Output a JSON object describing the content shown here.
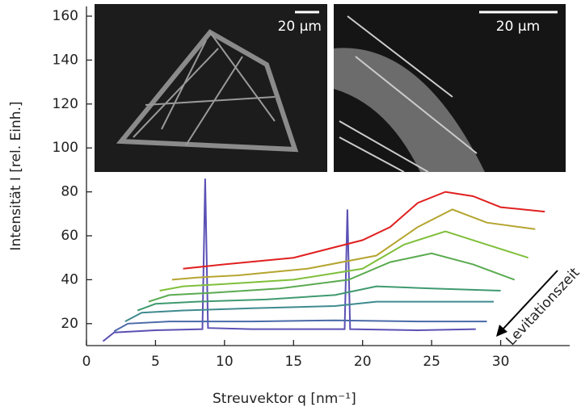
{
  "chart_data": {
    "type": "line",
    "x_label": "Streuvektor q [nm⁻¹]",
    "y_label": "Intensität I [rel. Einh.]",
    "annotation": "Levitationszeit",
    "inset_labels": [
      "20 µm",
      "20 µm"
    ],
    "xlim": [
      0,
      35
    ],
    "xticks": [
      0,
      5,
      10,
      15,
      20,
      25,
      30
    ],
    "ylim": [
      10,
      160
    ],
    "yticks": [
      20,
      40,
      60,
      80,
      100,
      120,
      140,
      160
    ],
    "series": [
      {
        "color": "#5a50b4",
        "x": [
          1.2,
          2,
          5,
          8.4,
          8.6,
          8.8,
          12,
          18.7,
          18.9,
          19.1,
          24,
          28.2
        ],
        "values": [
          12,
          16,
          17,
          17.5,
          86,
          18,
          17.5,
          17.5,
          72,
          17.5,
          17,
          17.5
        ]
      },
      {
        "color": "#4a6aa8",
        "x": [
          2,
          3,
          6,
          12,
          18,
          24,
          29
        ],
        "values": [
          16.5,
          20,
          21,
          21,
          21.5,
          21,
          21
        ]
      },
      {
        "color": "#3f8a8f",
        "x": [
          2.8,
          4,
          7,
          12,
          18,
          21,
          25,
          29.5
        ],
        "values": [
          21,
          25,
          26,
          27,
          28,
          30,
          30,
          30
        ]
      },
      {
        "color": "#3f9a70",
        "x": [
          3.7,
          5,
          8,
          13,
          18,
          21,
          25,
          30
        ],
        "values": [
          26,
          29,
          30,
          31,
          33,
          37,
          36,
          35
        ]
      },
      {
        "color": "#5aaa50",
        "x": [
          4.5,
          6,
          9,
          14,
          19,
          22,
          25,
          28,
          31
        ],
        "values": [
          30,
          33,
          34,
          36,
          40,
          48,
          52,
          47,
          40
        ]
      },
      {
        "color": "#7fbf3a",
        "x": [
          5.3,
          7,
          10,
          15,
          20,
          23,
          26,
          29,
          32
        ],
        "values": [
          35,
          37,
          38,
          40,
          45,
          56,
          62,
          56,
          50
        ]
      },
      {
        "color": "#b5a530",
        "x": [
          6.2,
          8,
          11,
          16,
          21,
          24,
          26.5,
          29,
          32.5
        ],
        "values": [
          40,
          41,
          42,
          45,
          51,
          64,
          72,
          66,
          63
        ]
      },
      {
        "color": "#e02020",
        "x": [
          7,
          10,
          15,
          20,
          22,
          24,
          26,
          28,
          30,
          33.2
        ],
        "values": [
          45,
          47,
          50,
          58,
          64,
          75,
          80,
          78,
          73,
          71
        ]
      }
    ]
  }
}
